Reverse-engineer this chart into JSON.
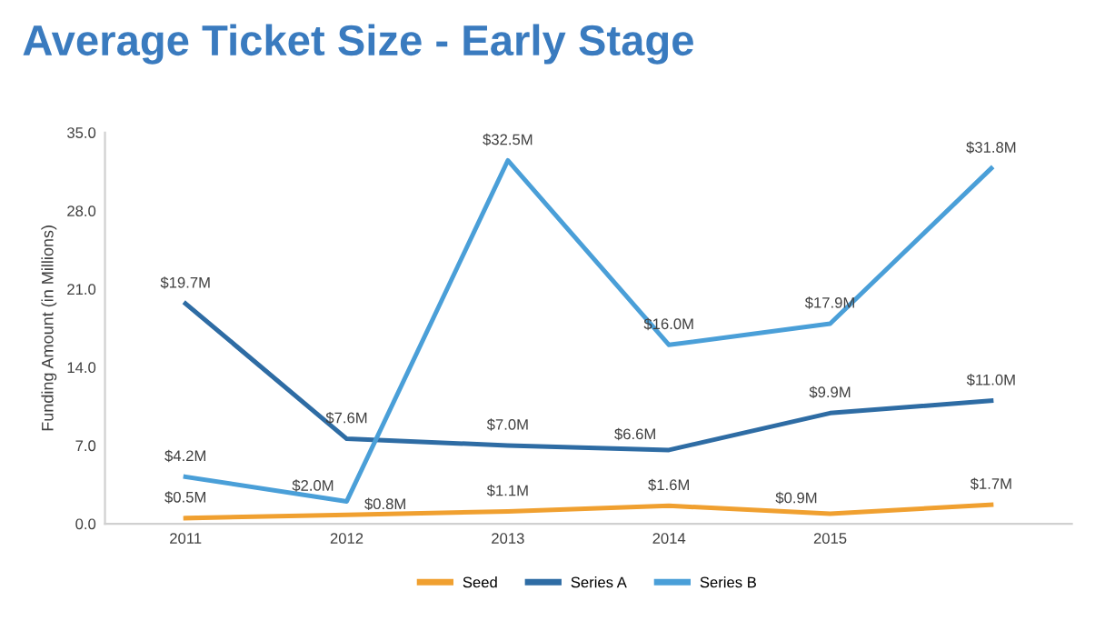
{
  "chart_data": {
    "type": "line",
    "title": "Average Ticket Size - Early Stage",
    "ylabel": "Funding Amount (in Millions)",
    "categories": [
      "2011",
      "2012",
      "2013",
      "2014",
      "2015",
      null
    ],
    "series": [
      {
        "name": "Seed",
        "color": "#f0a030",
        "values": [
          0.5,
          0.8,
          1.1,
          1.6,
          0.9,
          1.7
        ],
        "value_labels": [
          "$0.5M",
          "$0.8M",
          "$1.1M",
          "$1.6M",
          "$0.9M",
          "$1.7M"
        ]
      },
      {
        "name": "Series A",
        "color": "#2e6ca4",
        "values": [
          19.7,
          7.6,
          7.0,
          6.6,
          9.9,
          11.0
        ],
        "value_labels": [
          "$19.7M",
          "$7.6M",
          "$7.0M",
          "$6.6M",
          "$9.9M",
          "$11.0M"
        ]
      },
      {
        "name": "Series B",
        "color": "#4a9fd8",
        "values": [
          4.2,
          2.0,
          32.5,
          16.0,
          17.9,
          31.8
        ],
        "value_labels": [
          "$4.2M",
          "$2.0M",
          "$32.5M",
          "$16.0M",
          "$17.9M",
          "$31.8M"
        ]
      }
    ],
    "ylim": [
      0,
      35
    ],
    "yticks": [
      {
        "value": 0,
        "label": "0.0"
      },
      {
        "value": 7,
        "label": "7.0"
      },
      {
        "value": 14,
        "label": "14.0"
      },
      {
        "value": 21,
        "label": "21.0"
      },
      {
        "value": 28,
        "label": "28.0"
      },
      {
        "value": 35,
        "label": "35.0"
      }
    ],
    "grid": false,
    "legend": "bottom",
    "marker": "none",
    "line_style": "solid"
  }
}
